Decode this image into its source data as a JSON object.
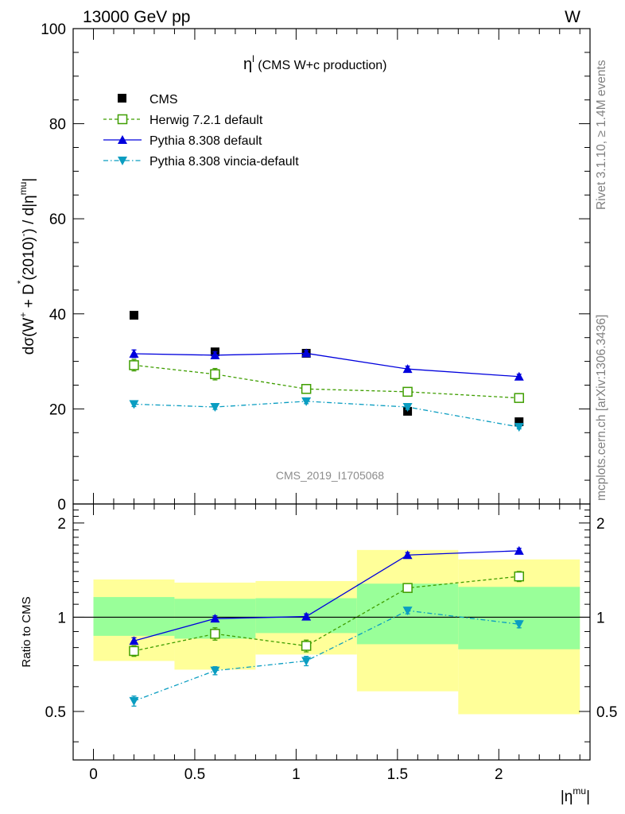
{
  "header": {
    "left": "13000 GeV pp",
    "right": "W"
  },
  "side_labels": {
    "rivet": "Rivet 3.1.10, ≥ 1.4M events",
    "mcplots": "mcplots.cern.ch [arXiv:1306.3436]"
  },
  "chart_data": {
    "type": "line",
    "title": "ηˡ (CMS W+c production)",
    "title_main": "η",
    "title_sup": "l",
    "title_rest": " (CMS W+c production)",
    "watermark": "CMS_2019_I1705068",
    "ylabel": "dσ(W⁺ + D*(2010)⁻) / d|η^mu|",
    "ylabel_parts": {
      "a": "dσ(W",
      "a_sup": "+",
      "b": " + D",
      "b_sup": "*",
      "c": "(2010)",
      "c_sup": "-",
      "d": ") / d|η",
      "d_sup": "mu",
      "e": "|"
    },
    "xlabel": "|η^mu|",
    "xlabel_main": "|η",
    "xlabel_sup": "mu",
    "xlabel_end": "|",
    "xlim": [
      -0.1,
      2.45
    ],
    "ylim": [
      0,
      100
    ],
    "x_ticks": [
      0,
      0.5,
      1,
      1.5,
      2
    ],
    "x_tick_labels": [
      "0",
      "0.5",
      "1",
      "1.5",
      "2"
    ],
    "y_ticks": [
      0,
      20,
      40,
      60,
      80,
      100
    ],
    "y_tick_labels": [
      "0",
      "20",
      "40",
      "60",
      "80",
      "100"
    ],
    "legend_position": "top-left",
    "bins": [
      0,
      0.4,
      0.8,
      1.3,
      1.8,
      2.4
    ],
    "x": [
      0.2,
      0.6,
      1.05,
      1.55,
      2.1
    ],
    "series": [
      {
        "name": "CMS",
        "style": "data",
        "color": "#000000",
        "marker": "square-filled",
        "values": [
          39.7,
          32.0,
          31.7,
          19.5,
          17.3
        ],
        "errors": [
          0.0,
          0.0,
          0.0,
          0.0,
          0.0
        ]
      },
      {
        "name": "Herwig 7.2.1 default",
        "style": "dashed",
        "color": "#3f9e00",
        "marker": "square-open",
        "values": [
          29.2,
          27.3,
          24.2,
          23.6,
          22.3
        ],
        "errors": [
          1.2,
          1.2,
          0.9,
          0.8,
          0.8
        ]
      },
      {
        "name": "Pythia 8.308 default",
        "style": "solid",
        "color": "#0000dd",
        "marker": "triangle-up",
        "values": [
          31.6,
          31.3,
          31.7,
          28.4,
          26.8
        ],
        "errors": [
          0.8,
          0.7,
          0.6,
          0.6,
          0.5
        ]
      },
      {
        "name": "Pythia 8.308 vincia-default",
        "style": "dashdot",
        "color": "#0a9dc1",
        "marker": "triangle-down",
        "values": [
          21.0,
          20.4,
          21.6,
          20.4,
          16.2
        ],
        "errors": [
          0.5,
          0.5,
          0.5,
          0.5,
          0.4
        ]
      }
    ],
    "ratio": {
      "ylabel": "Ratio to CMS",
      "ylim": [
        0.35,
        2.3
      ],
      "y_ticks": [
        0.5,
        1,
        2
      ],
      "y_tick_labels": [
        "0.5",
        "1",
        "2"
      ],
      "band_inner_color": "#99ff99",
      "band_outer_color": "#ffff99",
      "band_inner": [
        [
          0.872,
          1.16
        ],
        [
          0.854,
          1.145
        ],
        [
          0.89,
          1.15
        ],
        [
          0.82,
          1.28
        ],
        [
          0.79,
          1.25
        ]
      ],
      "band_outer": [
        [
          0.725,
          1.32
        ],
        [
          0.68,
          1.29
        ],
        [
          0.76,
          1.305
        ],
        [
          0.58,
          1.64
        ],
        [
          0.49,
          1.53
        ]
      ],
      "series": [
        {
          "name": "Herwig 7.2.1 default",
          "values": [
            0.78,
            0.885,
            0.81,
            1.24,
            1.35
          ],
          "errors": [
            0.03,
            0.04,
            0.035,
            0.04,
            0.05
          ]
        },
        {
          "name": "Pythia 8.308 default",
          "values": [
            0.84,
            0.99,
            1.005,
            1.58,
            1.63
          ],
          "errors": [
            0.02,
            0.02,
            0.02,
            0.03,
            0.03
          ]
        },
        {
          "name": "Pythia 8.308 vincia-default",
          "values": [
            0.54,
            0.675,
            0.725,
            1.05,
            0.95
          ],
          "errors": [
            0.02,
            0.02,
            0.025,
            0.025,
            0.025
          ]
        }
      ]
    }
  }
}
